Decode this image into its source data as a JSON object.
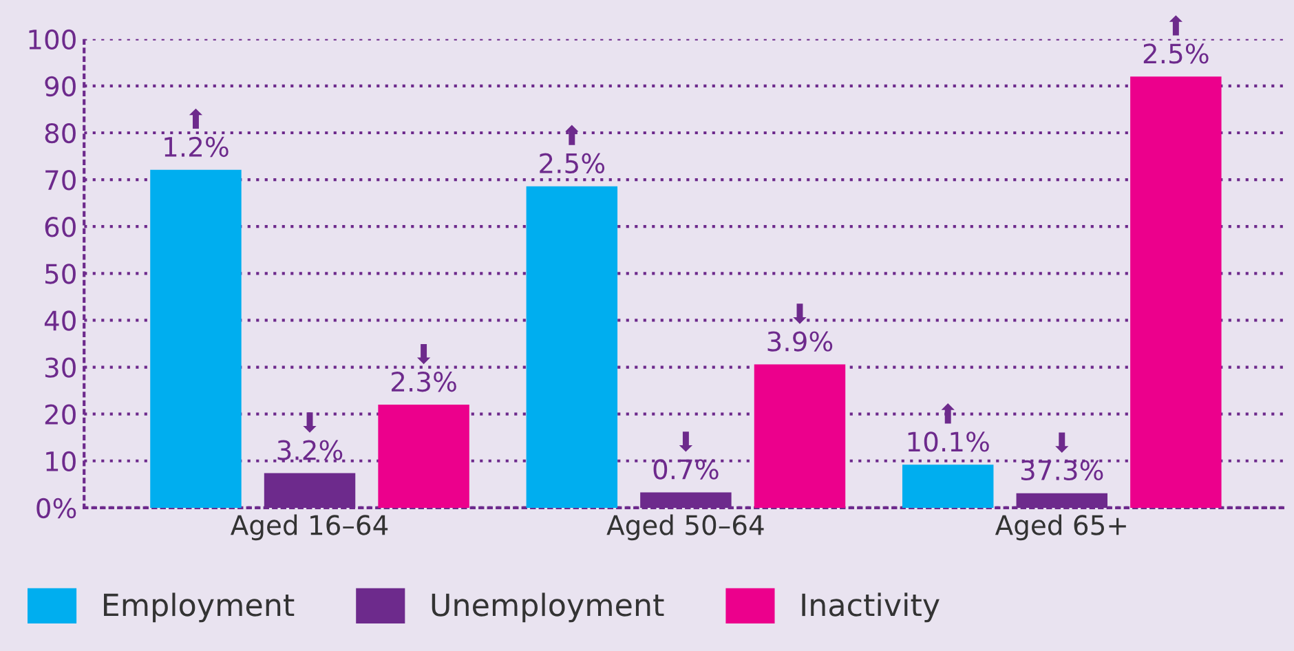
{
  "chart_data": {
    "type": "bar",
    "categories": [
      "Aged 16–64",
      "Aged 50–64",
      "Aged 65+"
    ],
    "series": [
      {
        "name": "Employment",
        "color": "#00aeef",
        "values": [
          72.1,
          68.6,
          9.2
        ]
      },
      {
        "name": "Unemployment",
        "color": "#6d2a8c",
        "values": [
          7.4,
          3.3,
          3.1
        ]
      },
      {
        "name": "Inactivity",
        "color": "#ec008c",
        "values": [
          22.0,
          30.6,
          92.0
        ]
      }
    ],
    "annotations": [
      "⬆\n1.2%",
      "⬇\n3.2%",
      "⬇\n2.3%",
      "⬆\n2.5%",
      "⬇\n0.7%",
      "⬇\n3.9%",
      "⬆\n10.1%",
      "⬇\n37.3%",
      "⬆\n2.5%"
    ],
    "ylim": [
      0,
      100
    ],
    "yticks": [
      {
        "value": 0,
        "label": "0%"
      },
      10,
      20,
      30,
      40,
      50,
      60,
      70,
      80,
      90,
      100
    ],
    "grid": "y",
    "legend": "bottom left"
  }
}
